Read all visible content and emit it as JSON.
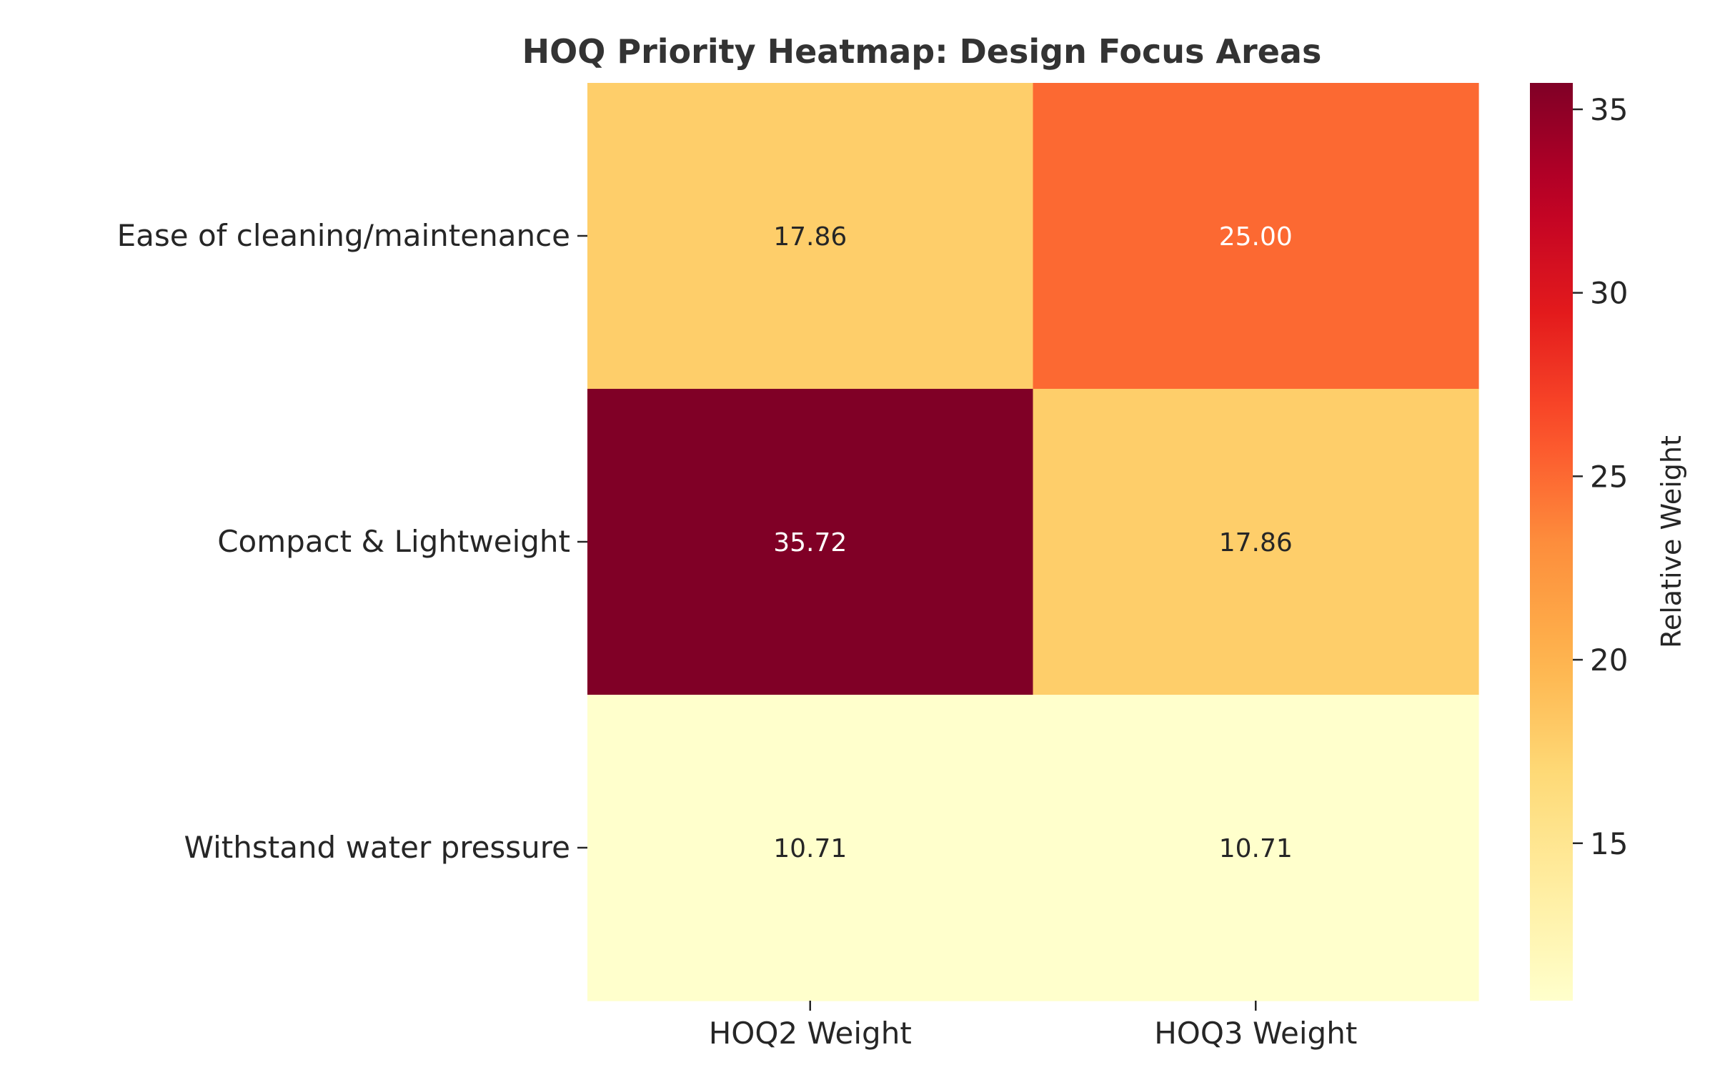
{
  "chart_data": {
    "type": "heatmap",
    "title": "HOQ Priority Heatmap: Design Focus Areas",
    "rows": [
      "Ease of cleaning/maintenance",
      "Compact & Lightweight",
      "Withstand water pressure"
    ],
    "columns": [
      "HOQ2 Weight",
      "HOQ3 Weight"
    ],
    "values": [
      [
        17.86,
        25.0
      ],
      [
        35.72,
        17.86
      ],
      [
        10.71,
        10.71
      ]
    ],
    "value_format": "2 decimals",
    "colormap": "YlOrRd",
    "colorbar": {
      "label": "Relative Weight",
      "range": [
        10.71,
        35.72
      ],
      "ticks": [
        15,
        20,
        25,
        30,
        35
      ]
    },
    "colors": {
      "text_dark": "#262626",
      "text_light": "#ffffff",
      "axis": "#262626"
    }
  }
}
